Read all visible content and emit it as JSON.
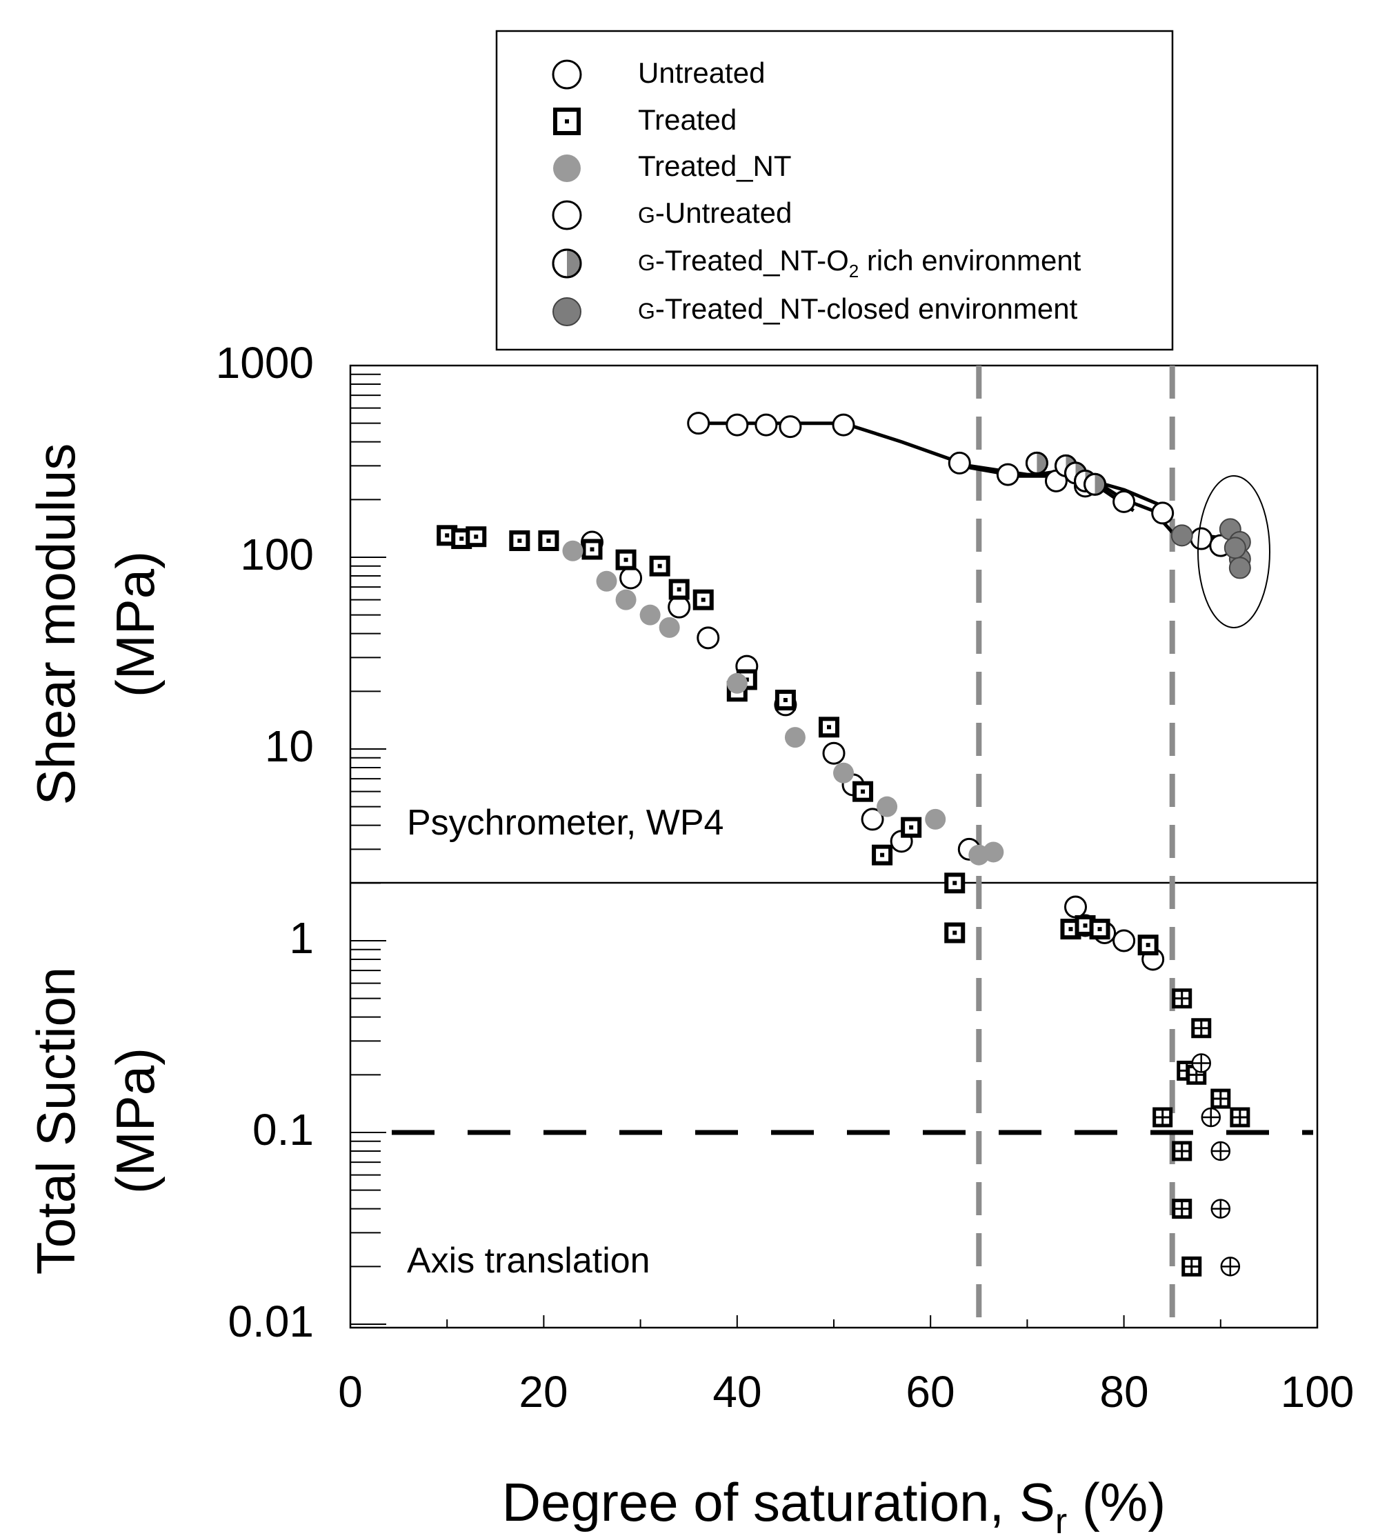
{
  "chart_data": {
    "type": "scatter",
    "xlabel": "Degree of saturation, S",
    "xlabel_sub": "r",
    "xlabel_suffix": " (%)",
    "x_ticks": [
      "0",
      "20",
      "40",
      "60",
      "80",
      "100"
    ],
    "xlim": [
      0,
      100
    ],
    "top_panel": {
      "ylabel_line1": "Shear modulus",
      "ylabel_line2": "(MPa)",
      "scale": "log",
      "ylim": [
        1000,
        2.05
      ],
      "y_ticks": [
        "1000",
        "100",
        "10"
      ],
      "annotation": "Psychrometer, WP4"
    },
    "bottom_panel": {
      "ylabel_line1": "Total Suction",
      "ylabel_line2": "(MPa)",
      "scale": "log",
      "ylim": [
        2.05,
        0.01
      ],
      "y_ticks": [
        "1",
        "0.1",
        "0.01"
      ],
      "annotation": "Axis translation",
      "reference_line": 0.1
    },
    "vertical_reference_lines": [
      65,
      85
    ],
    "legend": [
      {
        "label": "Untreated",
        "marker": "open-circle"
      },
      {
        "label": "Treated",
        "marker": "open-square"
      },
      {
        "label": "Treated_NT",
        "marker": "grey-circle"
      },
      {
        "prefix": "G",
        "label": "-Untreated",
        "marker": "open-circle"
      },
      {
        "prefix": "G",
        "label": "-Treated_NT-O",
        "sub": "2",
        "label2": " rich environment",
        "marker": "half-circle"
      },
      {
        "prefix": "G",
        "label": "-Treated_NT-closed environment",
        "marker": "dark-grey-circle"
      }
    ],
    "series": [
      {
        "name": "Untreated",
        "panel": "top",
        "marker": "open-circle",
        "points": [
          [
            25,
            120
          ],
          [
            29,
            78
          ],
          [
            34,
            55
          ],
          [
            37,
            38
          ],
          [
            41,
            27
          ],
          [
            45,
            17
          ],
          [
            50,
            9.5
          ],
          [
            52,
            6.5
          ],
          [
            54,
            4.3
          ],
          [
            57,
            3.3
          ],
          [
            64,
            3.0
          ]
        ]
      },
      {
        "name": "Treated",
        "panel": "top",
        "marker": "open-square",
        "points": [
          [
            10,
            130
          ],
          [
            11.5,
            125
          ],
          [
            13,
            128
          ],
          [
            17.5,
            122
          ],
          [
            20.5,
            122
          ],
          [
            25,
            110
          ],
          [
            28.5,
            97
          ],
          [
            32,
            90
          ],
          [
            34,
            68
          ],
          [
            36.5,
            60
          ],
          [
            40,
            20
          ],
          [
            41,
            23
          ],
          [
            45,
            18
          ],
          [
            49.5,
            13
          ],
          [
            53,
            6
          ],
          [
            55,
            2.8
          ],
          [
            58,
            3.9
          ]
        ]
      },
      {
        "name": "Treated_NT",
        "panel": "top",
        "marker": "grey-circle",
        "points": [
          [
            23,
            108
          ],
          [
            26.5,
            75
          ],
          [
            28.5,
            60
          ],
          [
            31,
            50
          ],
          [
            33,
            43
          ],
          [
            40,
            22
          ],
          [
            46,
            11.5
          ],
          [
            51,
            7.5
          ],
          [
            55.5,
            5
          ],
          [
            60.5,
            4.3
          ],
          [
            65,
            2.8
          ],
          [
            66.5,
            2.9
          ]
        ]
      },
      {
        "name": "G-Untreated",
        "panel": "top",
        "marker": "open-circle",
        "points": [
          [
            36,
            500
          ],
          [
            40,
            490
          ],
          [
            43,
            490
          ],
          [
            45.5,
            480
          ],
          [
            51,
            490
          ],
          [
            63,
            310
          ],
          [
            68,
            270
          ],
          [
            73,
            250
          ],
          [
            76,
            235
          ],
          [
            80,
            195
          ],
          [
            84,
            170
          ],
          [
            88,
            125
          ],
          [
            90,
            115
          ]
        ]
      },
      {
        "name": "G-Treated_NT-O2 rich environment",
        "panel": "top",
        "marker": "half-circle",
        "points": [
          [
            71,
            310
          ],
          [
            74,
            300
          ],
          [
            75,
            275
          ],
          [
            76,
            250
          ],
          [
            77,
            240
          ]
        ]
      },
      {
        "name": "G-Treated_NT-closed environment",
        "panel": "top",
        "marker": "dark-grey-circle",
        "points": [
          [
            86,
            130
          ],
          [
            91,
            140
          ],
          [
            92,
            120
          ],
          [
            92,
            98
          ],
          [
            92,
            88
          ],
          [
            91.5,
            112
          ]
        ]
      },
      {
        "name": "Untreated",
        "panel": "bottom",
        "marker": "open-circle",
        "points": [
          [
            75,
            1.5
          ],
          [
            76,
            1.2
          ],
          [
            78,
            1.1
          ],
          [
            80,
            1.0
          ],
          [
            83,
            0.8
          ]
        ]
      },
      {
        "name": "Treated",
        "panel": "bottom",
        "marker": "open-square",
        "points": [
          [
            62.5,
            2.0
          ],
          [
            62.5,
            1.1
          ],
          [
            74.5,
            1.15
          ],
          [
            76,
            1.2
          ],
          [
            77.5,
            1.15
          ],
          [
            82.5,
            0.95
          ]
        ]
      },
      {
        "name": "Treated_NT-Axis translation",
        "panel": "bottom",
        "marker": "crossed-square",
        "points": [
          [
            86,
            0.5
          ],
          [
            88,
            0.35
          ],
          [
            86.5,
            0.21
          ],
          [
            87.5,
            0.2
          ],
          [
            90,
            0.15
          ],
          [
            92,
            0.12
          ],
          [
            84,
            0.12
          ],
          [
            86,
            0.08
          ],
          [
            86,
            0.04
          ],
          [
            87,
            0.02
          ]
        ]
      },
      {
        "name": "Untreated-Axis translation",
        "panel": "bottom",
        "marker": "crossed-circle",
        "points": [
          [
            88,
            0.23
          ],
          [
            89,
            0.12
          ],
          [
            90,
            0.08
          ],
          [
            90,
            0.04
          ],
          [
            91,
            0.02
          ]
        ]
      }
    ],
    "fit_lines": [
      {
        "panel": "top",
        "points": [
          [
            36,
            500
          ],
          [
            51,
            500
          ],
          [
            57,
            400
          ],
          [
            64,
            300
          ],
          [
            70,
            270
          ],
          [
            76,
            270
          ],
          [
            80,
            200
          ],
          [
            83,
            175
          ],
          [
            85,
            135
          ],
          [
            88,
            130
          ],
          [
            91,
            125
          ],
          [
            92,
            120
          ]
        ]
      },
      {
        "panel": "top",
        "points": [
          [
            71,
            270
          ],
          [
            74,
            285
          ],
          [
            77,
            240
          ],
          [
            81,
            175
          ]
        ]
      },
      {
        "panel": "top",
        "points": [
          [
            63,
            300
          ],
          [
            69,
            265
          ],
          [
            75,
            265
          ],
          [
            80,
            225
          ],
          [
            84,
            185
          ]
        ]
      }
    ],
    "grid": false
  }
}
